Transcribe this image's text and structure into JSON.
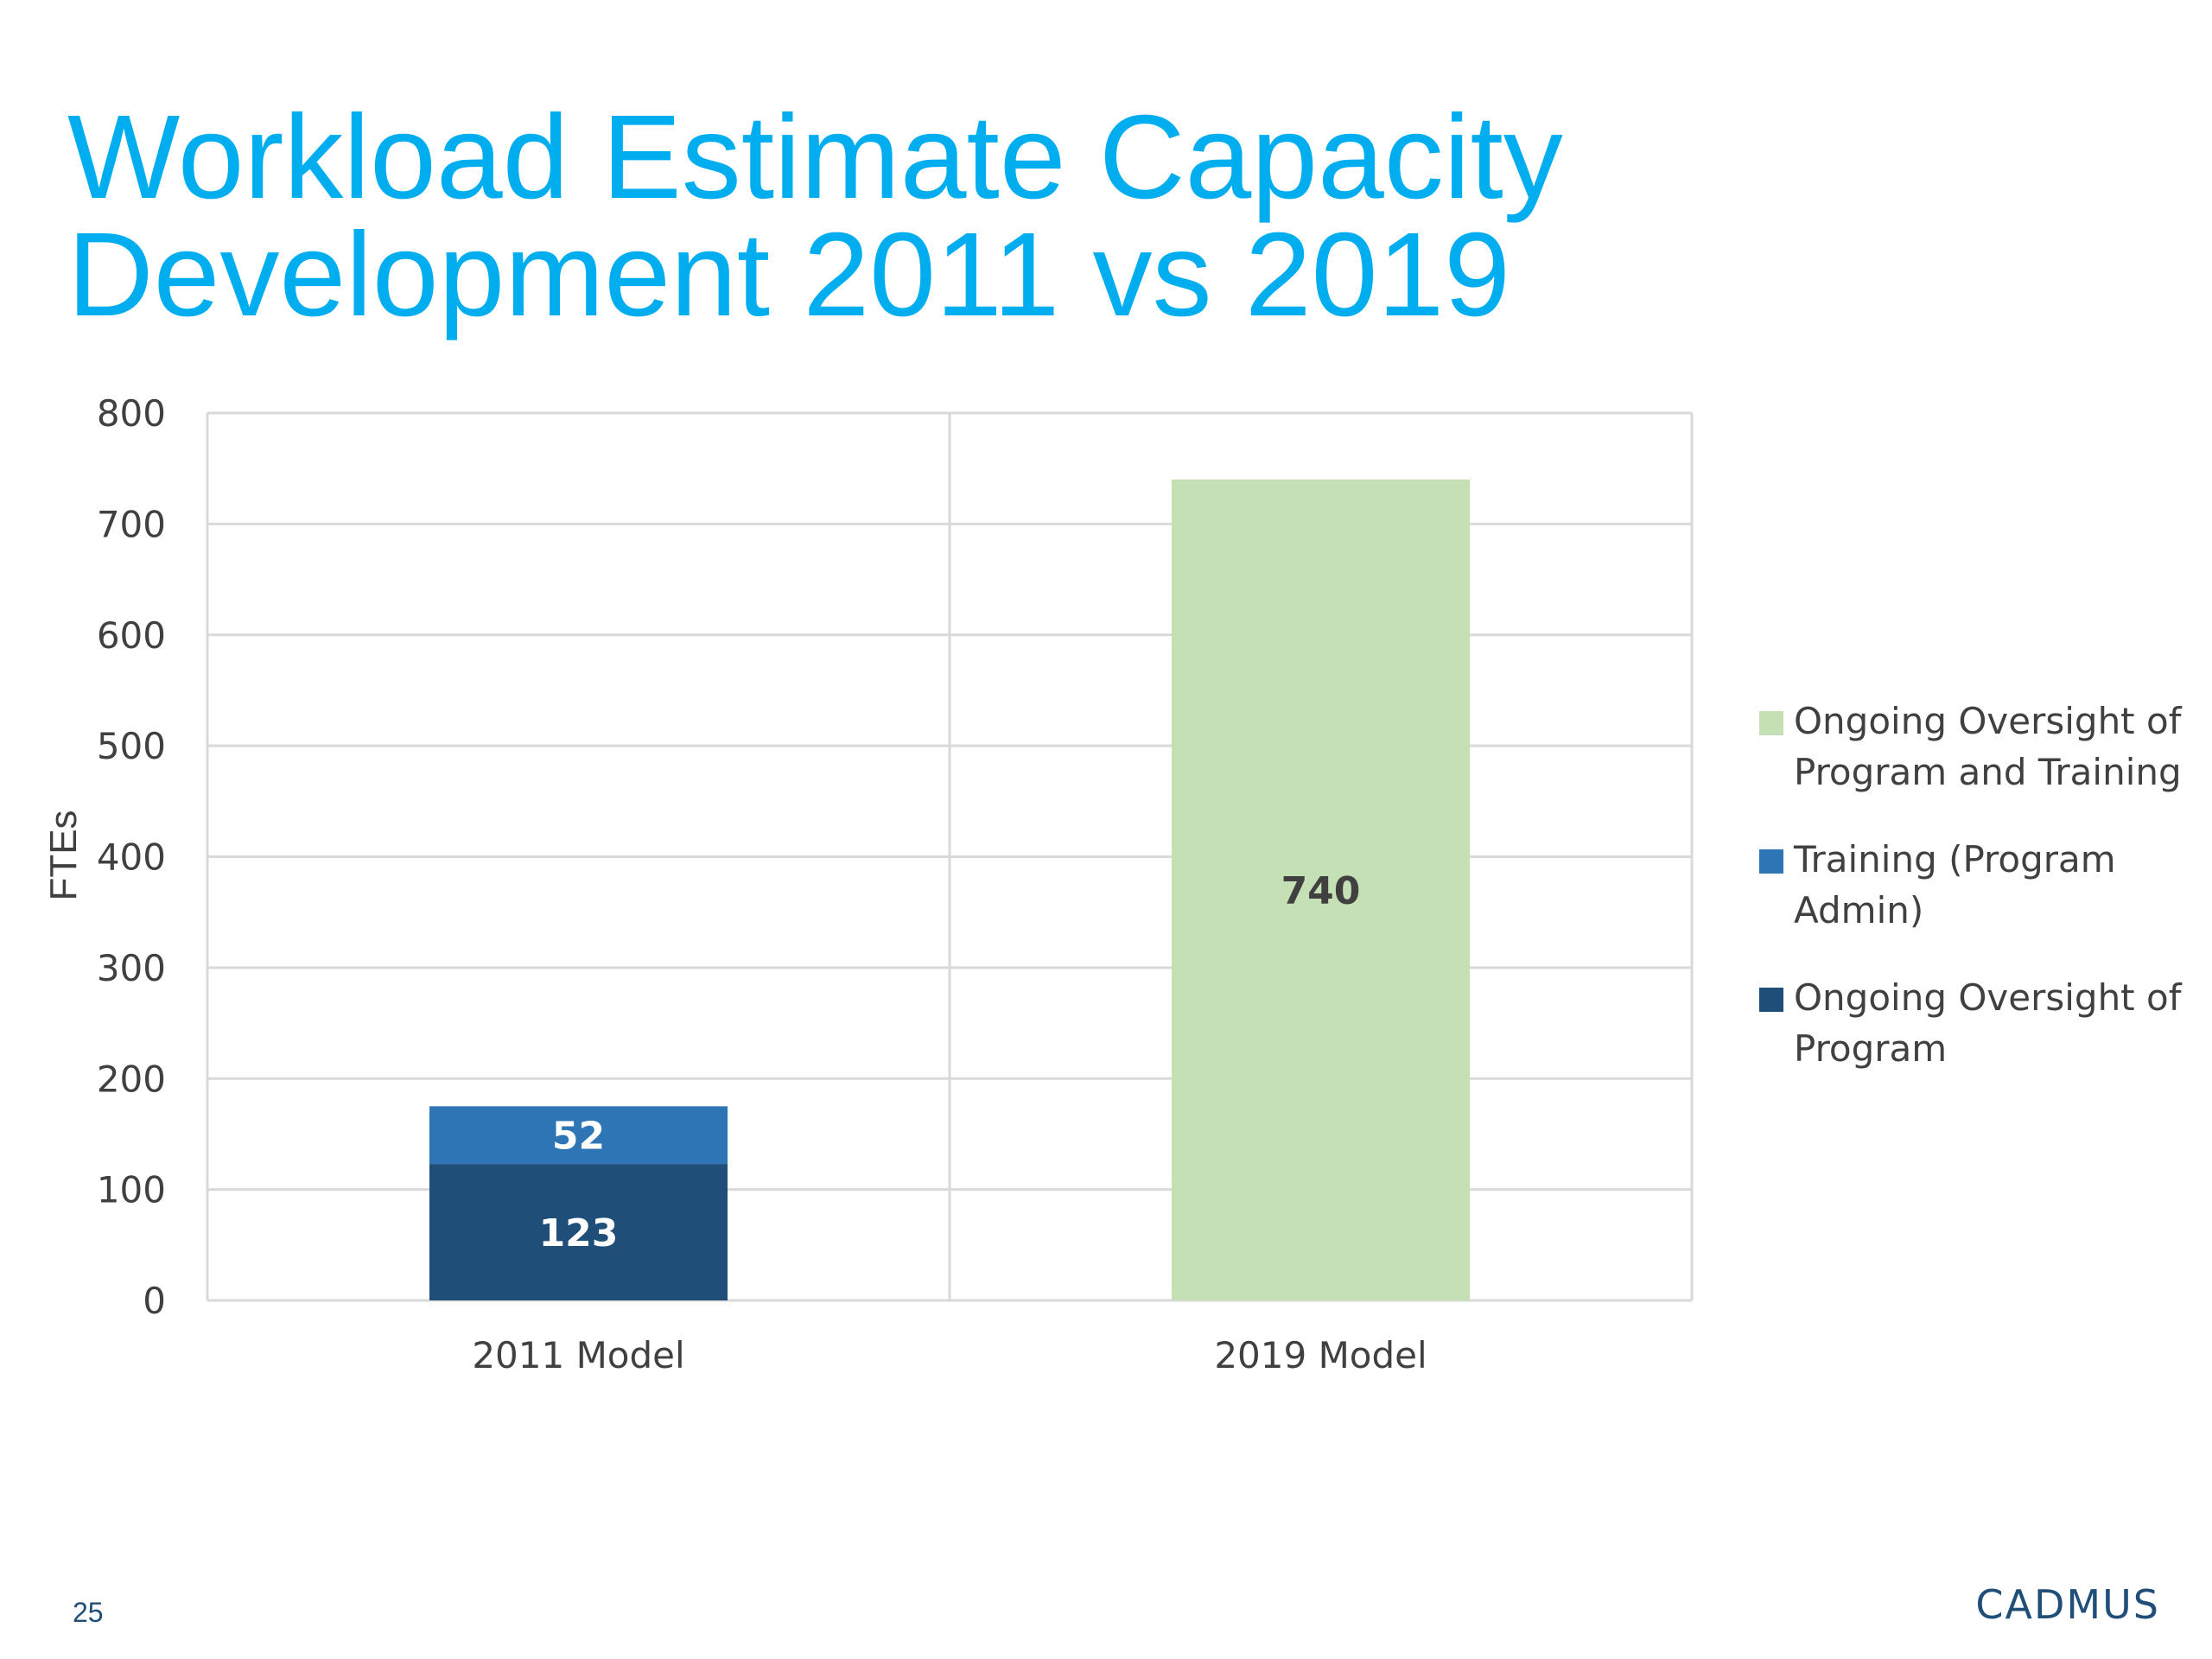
{
  "slide": {
    "title_lines": [
      "Workload Estimate Capacity",
      "Development 2011 vs 2019"
    ],
    "page_number": "25",
    "logo_text": "CADMUS"
  },
  "chart_data": {
    "type": "bar",
    "stacked": true,
    "title": "",
    "xlabel": "",
    "ylabel": "FTEs",
    "ylim": [
      0,
      800
    ],
    "yticks": [
      0,
      100,
      200,
      300,
      400,
      500,
      600,
      700,
      800
    ],
    "grid": true,
    "legend_position": "right",
    "categories": [
      "2011 Model",
      "2019 Model"
    ],
    "series": [
      {
        "name": "Ongoing Oversight of Program",
        "color": "#1F4E79",
        "label_color": "#ffffff",
        "values": [
          123,
          null
        ]
      },
      {
        "name": "Training (Program Admin)",
        "color": "#2E75B6",
        "label_color": "#ffffff",
        "values": [
          52,
          null
        ]
      },
      {
        "name": "Ongoing Oversight of Program and Training",
        "color": "#C5E0B4",
        "label_color": "#404040",
        "values": [
          null,
          740
        ]
      }
    ],
    "legend": [
      {
        "series_index": 2,
        "lines": [
          "Ongoing Oversight of",
          "Program and Training"
        ]
      },
      {
        "series_index": 1,
        "lines": [
          "Training (Program",
          "Admin)"
        ]
      },
      {
        "series_index": 0,
        "lines": [
          "Ongoing Oversight of",
          "Program"
        ]
      }
    ]
  }
}
